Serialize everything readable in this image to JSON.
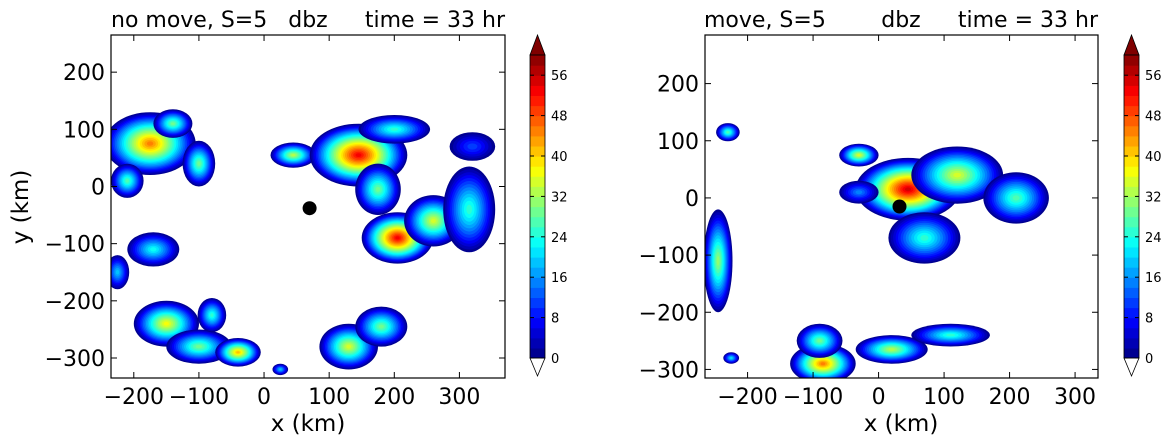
{
  "chart_data": [
    {
      "type": "heatmap",
      "title_left": "no move, S=5",
      "title_center": "dbz",
      "title_right": "time = 33 hr",
      "title_left_color": "#ff0000",
      "title_center_color": "#000000",
      "title_right_color": "#0000ff",
      "xlabel": "x (km)",
      "ylabel": "y (km)",
      "xlim": [
        -235,
        370
      ],
      "ylim": [
        -335,
        265
      ],
      "xticks": [
        -200,
        -100,
        0,
        100,
        200,
        300
      ],
      "xtick_labels": [
        "−200",
        "−100",
        "0",
        "100",
        "200",
        "300"
      ],
      "yticks": [
        200,
        100,
        0,
        -100,
        -200,
        -300
      ],
      "ytick_labels": [
        "200",
        "100",
        "0",
        "−100",
        "−200",
        "−300"
      ],
      "colorbar_ticks": [
        0,
        8,
        16,
        24,
        32,
        40,
        48,
        56
      ],
      "colorbar_range": [
        0,
        60
      ],
      "colorbar_extend": "both",
      "marker": {
        "x": 70,
        "y": -38,
        "color": "#000000"
      },
      "blobs": [
        {
          "x": -175,
          "y": 75,
          "rx": 70,
          "ry": 55,
          "peak": 46
        },
        {
          "x": -140,
          "y": 110,
          "rx": 30,
          "ry": 25,
          "peak": 30
        },
        {
          "x": -100,
          "y": 40,
          "rx": 25,
          "ry": 40,
          "peak": 30
        },
        {
          "x": -210,
          "y": 10,
          "rx": 25,
          "ry": 30,
          "peak": 28
        },
        {
          "x": 45,
          "y": 55,
          "rx": 35,
          "ry": 22,
          "peak": 34
        },
        {
          "x": 145,
          "y": 55,
          "rx": 75,
          "ry": 55,
          "peak": 54
        },
        {
          "x": 200,
          "y": 100,
          "rx": 55,
          "ry": 25,
          "peak": 26
        },
        {
          "x": 175,
          "y": -5,
          "rx": 35,
          "ry": 45,
          "peak": 30
        },
        {
          "x": 205,
          "y": -90,
          "rx": 55,
          "ry": 45,
          "peak": 54
        },
        {
          "x": 260,
          "y": -60,
          "rx": 45,
          "ry": 45,
          "peak": 36
        },
        {
          "x": 315,
          "y": -40,
          "rx": 40,
          "ry": 75,
          "peak": 26
        },
        {
          "x": 320,
          "y": 70,
          "rx": 35,
          "ry": 25,
          "peak": 12
        },
        {
          "x": -170,
          "y": -110,
          "rx": 40,
          "ry": 30,
          "peak": 24
        },
        {
          "x": -225,
          "y": -150,
          "rx": 18,
          "ry": 30,
          "peak": 20
        },
        {
          "x": -150,
          "y": -240,
          "rx": 50,
          "ry": 40,
          "peak": 38
        },
        {
          "x": -100,
          "y": -280,
          "rx": 50,
          "ry": 30,
          "peak": 30
        },
        {
          "x": -40,
          "y": -290,
          "rx": 35,
          "ry": 25,
          "peak": 42
        },
        {
          "x": -80,
          "y": -225,
          "rx": 22,
          "ry": 30,
          "peak": 26
        },
        {
          "x": 130,
          "y": -280,
          "rx": 45,
          "ry": 40,
          "peak": 36
        },
        {
          "x": 180,
          "y": -245,
          "rx": 40,
          "ry": 35,
          "peak": 30
        },
        {
          "x": 25,
          "y": -320,
          "rx": 12,
          "ry": 10,
          "peak": 20
        }
      ]
    },
    {
      "type": "heatmap",
      "title_left": "move, S=5",
      "title_center": "dbz",
      "title_right": "time = 33 hr",
      "title_left_color": "#ff0000",
      "title_center_color": "#000000",
      "title_right_color": "#0000ff",
      "xlabel": "x (km)",
      "ylabel": "",
      "xlim": [
        -265,
        335
      ],
      "ylim": [
        -315,
        285
      ],
      "xticks": [
        -200,
        -100,
        0,
        100,
        200,
        300
      ],
      "xtick_labels": [
        "−200",
        "−100",
        "0",
        "100",
        "200",
        "300"
      ],
      "yticks": [
        200,
        100,
        0,
        -100,
        -200,
        -300
      ],
      "ytick_labels": [
        "200",
        "100",
        "0",
        "−100",
        "−200",
        "−300"
      ],
      "colorbar_ticks": [
        0,
        8,
        16,
        24,
        32,
        40,
        48,
        56
      ],
      "colorbar_range": [
        0,
        60
      ],
      "colorbar_extend": "both",
      "marker": {
        "x": 32,
        "y": -15,
        "color": "#000000"
      },
      "blobs": [
        {
          "x": 45,
          "y": 15,
          "rx": 80,
          "ry": 55,
          "peak": 56
        },
        {
          "x": 120,
          "y": 40,
          "rx": 70,
          "ry": 50,
          "peak": 36
        },
        {
          "x": 210,
          "y": 0,
          "rx": 50,
          "ry": 45,
          "peak": 28
        },
        {
          "x": 70,
          "y": -70,
          "rx": 55,
          "ry": 45,
          "peak": 26
        },
        {
          "x": -30,
          "y": 75,
          "rx": 30,
          "ry": 20,
          "peak": 36
        },
        {
          "x": -30,
          "y": 10,
          "rx": 30,
          "ry": 20,
          "peak": 16
        },
        {
          "x": -230,
          "y": 115,
          "rx": 18,
          "ry": 16,
          "peak": 28
        },
        {
          "x": -245,
          "y": -110,
          "rx": 22,
          "ry": 90,
          "peak": 32
        },
        {
          "x": -85,
          "y": -290,
          "rx": 50,
          "ry": 35,
          "peak": 46
        },
        {
          "x": -90,
          "y": -250,
          "rx": 35,
          "ry": 30,
          "peak": 30
        },
        {
          "x": 20,
          "y": -265,
          "rx": 55,
          "ry": 25,
          "peak": 34
        },
        {
          "x": 110,
          "y": -240,
          "rx": 60,
          "ry": 20,
          "peak": 26
        },
        {
          "x": -225,
          "y": -280,
          "rx": 12,
          "ry": 10,
          "peak": 22
        }
      ]
    }
  ]
}
